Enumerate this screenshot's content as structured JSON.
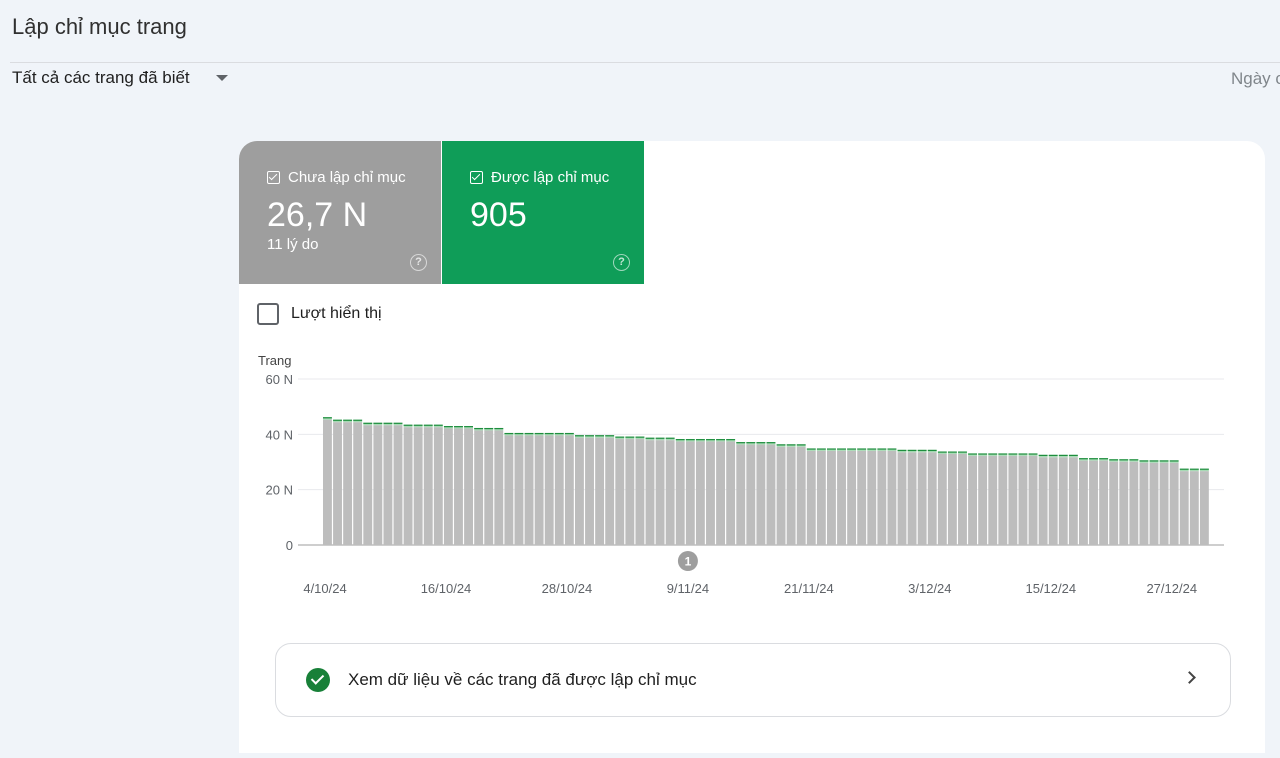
{
  "header": {
    "title": "Lập chỉ mục trang"
  },
  "filter": {
    "selected": "Tất cả các trang đã biết",
    "date_label": "Ngày c"
  },
  "tiles": [
    {
      "label": "Chưa lập chỉ mục",
      "value": "26,7 N",
      "sub": "11 lý do",
      "color": "#9e9e9e",
      "checked": true
    },
    {
      "label": "Được lập chỉ mục",
      "value": "905",
      "color": "#0f9d58",
      "checked": true
    }
  ],
  "impressions": {
    "label": "Lượt hiển thị",
    "checked": false
  },
  "link": {
    "label": "Xem dữ liệu về các trang đã được lập chỉ mục",
    "icon": "check-circle-icon"
  },
  "chart_data": {
    "type": "bar",
    "stacked": true,
    "ylabel": "Trang",
    "ylim": [
      0,
      60000
    ],
    "yticks": [
      "0",
      "20 N",
      "40 N",
      "60 N"
    ],
    "xticks": [
      "4/10/24",
      "16/10/24",
      "28/10/24",
      "9/11/24",
      "21/11/24",
      "3/12/24",
      "15/12/24",
      "27/12/24"
    ],
    "annotation": {
      "label": "1",
      "date": "9/11/24"
    },
    "grid": true,
    "x": [
      "4/10/24",
      "5/10/24",
      "6/10/24",
      "7/10/24",
      "8/10/24",
      "9/10/24",
      "10/10/24",
      "11/10/24",
      "12/10/24",
      "13/10/24",
      "14/10/24",
      "15/10/24",
      "16/10/24",
      "17/10/24",
      "18/10/24",
      "19/10/24",
      "20/10/24",
      "21/10/24",
      "22/10/24",
      "23/10/24",
      "24/10/24",
      "25/10/24",
      "26/10/24",
      "27/10/24",
      "28/10/24",
      "29/10/24",
      "30/10/24",
      "31/10/24",
      "1/11/24",
      "2/11/24",
      "3/11/24",
      "4/11/24",
      "5/11/24",
      "6/11/24",
      "7/11/24",
      "8/11/24",
      "9/11/24",
      "10/11/24",
      "11/11/24",
      "12/11/24",
      "13/11/24",
      "14/11/24",
      "15/11/24",
      "16/11/24",
      "17/11/24",
      "18/11/24",
      "19/11/24",
      "20/11/24",
      "21/11/24",
      "22/11/24",
      "23/11/24",
      "24/11/24",
      "25/11/24",
      "26/11/24",
      "27/11/24",
      "28/11/24",
      "29/11/24",
      "30/11/24",
      "1/12/24",
      "2/12/24",
      "3/12/24",
      "4/12/24",
      "5/12/24",
      "6/12/24",
      "7/12/24",
      "8/12/24",
      "9/12/24",
      "10/12/24",
      "11/12/24",
      "12/12/24",
      "13/12/24",
      "14/12/24",
      "15/12/24",
      "16/12/24",
      "17/12/24",
      "18/12/24",
      "19/12/24",
      "20/12/24",
      "21/12/24",
      "22/12/24",
      "23/12/24",
      "24/12/24",
      "25/12/24",
      "26/12/24",
      "27/12/24",
      "28/12/24",
      "29/12/24",
      "30/12/24"
    ],
    "series": [
      {
        "name": "Chưa lập chỉ mục",
        "color": "#bdbdbd",
        "values": [
          45300,
          44400,
          44400,
          44400,
          43300,
          43300,
          43300,
          43300,
          42600,
          42600,
          42600,
          42600,
          42100,
          42100,
          42100,
          41400,
          41400,
          41400,
          39600,
          39600,
          39600,
          39600,
          39600,
          39600,
          39600,
          38800,
          38800,
          38800,
          38800,
          38300,
          38300,
          38300,
          37900,
          37900,
          37900,
          37400,
          37400,
          37400,
          37400,
          37400,
          37400,
          36300,
          36300,
          36300,
          36300,
          35500,
          35500,
          35500,
          34000,
          34000,
          34000,
          34000,
          34000,
          34000,
          34000,
          34000,
          34000,
          33500,
          33500,
          33500,
          33500,
          32900,
          32900,
          32900,
          32200,
          32200,
          32200,
          32200,
          32200,
          32200,
          32200,
          31700,
          31700,
          31700,
          31700,
          30500,
          30500,
          30500,
          30100,
          30100,
          30100,
          29700,
          29700,
          29700,
          29700,
          26700,
          26700,
          26700
        ]
      },
      {
        "name": "Được lập chỉ mục",
        "color": "#1e8e3e",
        "values": [
          900,
          900,
          900,
          900,
          900,
          900,
          900,
          900,
          900,
          900,
          900,
          900,
          900,
          900,
          900,
          900,
          900,
          900,
          900,
          900,
          900,
          900,
          900,
          900,
          900,
          900,
          900,
          900,
          900,
          900,
          900,
          900,
          900,
          900,
          900,
          900,
          900,
          900,
          900,
          900,
          900,
          900,
          900,
          900,
          900,
          900,
          900,
          900,
          900,
          900,
          900,
          900,
          900,
          900,
          900,
          900,
          900,
          900,
          900,
          900,
          900,
          900,
          900,
          900,
          900,
          900,
          900,
          900,
          900,
          900,
          900,
          900,
          900,
          900,
          900,
          900,
          900,
          900,
          900,
          900,
          900,
          900,
          900,
          900,
          900,
          905,
          905,
          905
        ]
      }
    ]
  }
}
